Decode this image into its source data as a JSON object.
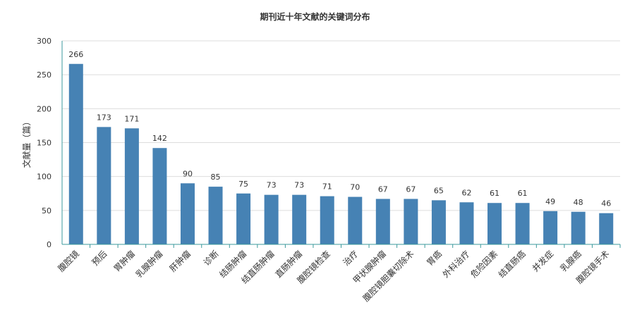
{
  "chart_data": {
    "type": "bar",
    "title": "期刊近十年文献的关键词分布",
    "xlabel": "",
    "ylabel": "文献量（篇）",
    "ylim": [
      0,
      300
    ],
    "yticks": [
      0,
      50,
      100,
      150,
      200,
      250,
      300
    ],
    "grid": true,
    "categories": [
      "腹腔镜",
      "预后",
      "胃肿瘤",
      "乳腺肿瘤",
      "肝肿瘤",
      "诊断",
      "结肠肿瘤",
      "结直肠肿瘤",
      "直肠肿瘤",
      "腹腔镜检查",
      "治疗",
      "甲状腺肿瘤",
      "腹腔镜胆囊切除术",
      "胃癌",
      "外科治疗",
      "危险因素",
      "结直肠癌",
      "并发症",
      "乳腺癌",
      "腹腔镜手术"
    ],
    "values": [
      266,
      173,
      171,
      142,
      90,
      85,
      75,
      73,
      73,
      71,
      70,
      67,
      67,
      65,
      62,
      61,
      61,
      49,
      48,
      46
    ],
    "colors": {
      "bar": "#4682b4",
      "axis": "#3b9a9c",
      "grid": "#dddddd"
    }
  }
}
